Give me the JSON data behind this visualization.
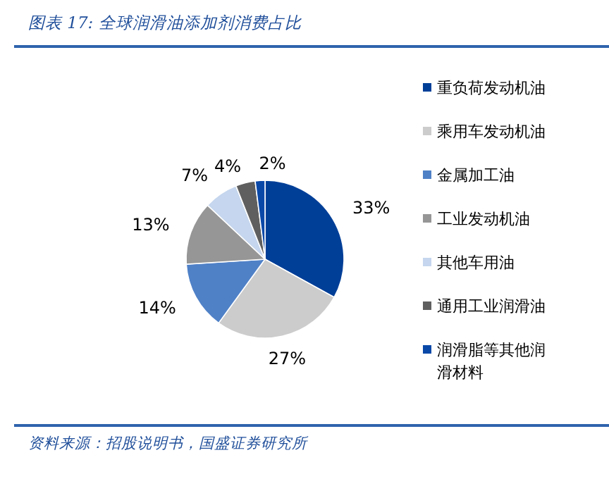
{
  "chart_data": {
    "type": "pie",
    "title": "图表 17:  全球润滑油添加剂消费占比",
    "categories": [
      "重负荷发动机油",
      "乘用车发动机油",
      "金属加工油",
      "工业发动机油",
      "其他车用油",
      "通用工业润滑油",
      "润滑脂等其他润滑材料"
    ],
    "values": [
      33,
      27,
      14,
      13,
      7,
      4,
      2
    ],
    "colors": [
      "#003f98",
      "#cccccc",
      "#4f81c7",
      "#969696",
      "#c5d6ee",
      "#5f5f5f",
      "#0a48a8"
    ],
    "value_labels": [
      "33%",
      "27%",
      "14%",
      "13%",
      "7%",
      "4%",
      "2%"
    ],
    "legend": "right",
    "annotations": [
      "资料来源：招股说明书，国盛证券研究所"
    ]
  }
}
